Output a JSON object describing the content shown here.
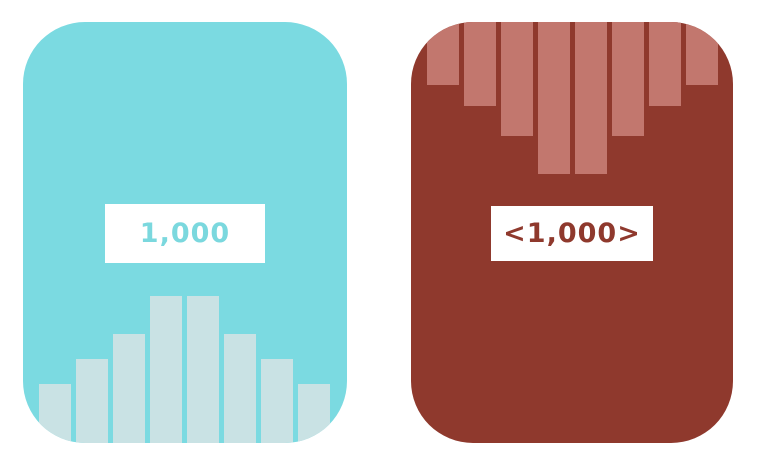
{
  "left_panel": {
    "value_text": "1,000",
    "background_color": "#7bdae1",
    "bar_color": "#c9e2e4",
    "text_color": "#7bd8de",
    "bar_direction": "up",
    "bar_levels": [
      0.14,
      0.2,
      0.26,
      0.35,
      0.35,
      0.26,
      0.2,
      0.14
    ]
  },
  "right_panel": {
    "value_text": "<1,000>",
    "background_color": "#8f392d",
    "bar_color": "#c2776e",
    "text_color": "#8f392d",
    "bar_direction": "down",
    "bar_levels": [
      0.15,
      0.2,
      0.27,
      0.36,
      0.36,
      0.27,
      0.2,
      0.15
    ]
  }
}
